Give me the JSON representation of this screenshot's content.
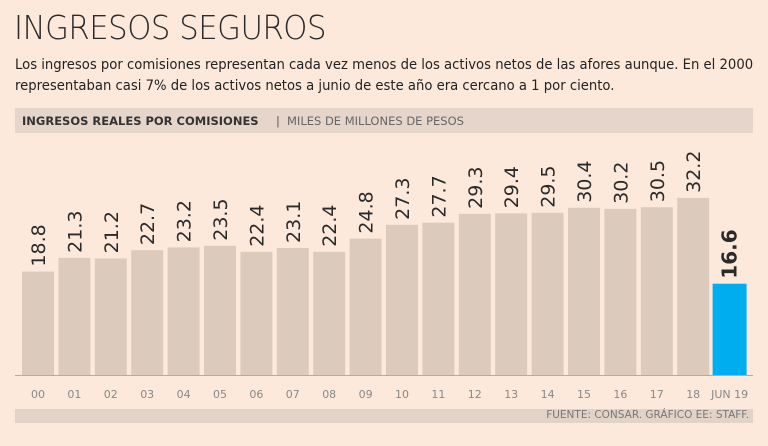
{
  "header": {
    "title": "INGRESOS SEGUROS",
    "description": "Los ingresos por comisiones representan cada vez menos de los activos netos de las afores aunque. En el 2000 representaban casi 7% de los activos netos a junio de este año era cercano a 1 por ciento."
  },
  "chart_data": {
    "type": "bar",
    "title": "INGRESOS REALES POR COMISIONES",
    "unit": "MILES DE MILLONES DE PESOS",
    "separator": "|",
    "categories": [
      "00",
      "01",
      "02",
      "03",
      "04",
      "05",
      "06",
      "07",
      "08",
      "09",
      "10",
      "11",
      "12",
      "13",
      "14",
      "15",
      "16",
      "17",
      "18",
      "JUN 19"
    ],
    "values": [
      18.8,
      21.3,
      21.2,
      22.7,
      23.2,
      23.5,
      22.4,
      23.1,
      22.4,
      24.8,
      27.3,
      27.7,
      29.3,
      29.4,
      29.5,
      30.4,
      30.2,
      30.5,
      32.2,
      16.6
    ],
    "labels": [
      "18.8",
      "21.3",
      "21.2",
      "22.7",
      "23.2",
      "23.5",
      "22.4",
      "23.1",
      "22.4",
      "24.8",
      "27.3",
      "27.7",
      "29.3",
      "29.4",
      "29.5",
      "30.4",
      "30.2",
      "30.5",
      "32.2",
      "16.6"
    ],
    "highlight_index": 19,
    "colors": {
      "bar": "#dccbbd",
      "highlight": "#00aeef"
    },
    "ylim": [
      0,
      33
    ],
    "source": "FUENTE: CONSAR. GRÁFICO EE: STAFF."
  }
}
